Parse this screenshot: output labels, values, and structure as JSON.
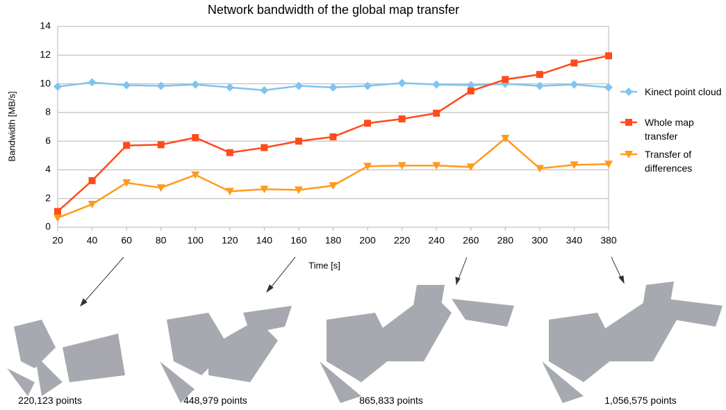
{
  "chart_data": {
    "type": "line",
    "title": "Network bandwidth of the global map transfer",
    "xlabel": "Time [s]",
    "ylabel": "Bandwidth [MB/s]",
    "categories": [
      "20",
      "40",
      "60",
      "80",
      "100",
      "120",
      "140",
      "160",
      "180",
      "200",
      "220",
      "240",
      "260",
      "280",
      "300",
      "340",
      "380"
    ],
    "series": [
      {
        "name": "Kinect point cloud",
        "color": "#7fc4f0",
        "marker": "diamond",
        "values": [
          9.8,
          10.1,
          9.9,
          9.85,
          9.95,
          9.75,
          9.55,
          9.85,
          9.75,
          9.85,
          10.05,
          9.95,
          9.9,
          10.0,
          9.85,
          9.95,
          9.75
        ]
      },
      {
        "name": "Whole map transfer",
        "color": "#ff4a1a",
        "marker": "square",
        "values": [
          1.1,
          3.25,
          5.7,
          5.75,
          6.25,
          5.2,
          5.55,
          6.0,
          6.3,
          7.25,
          7.55,
          7.95,
          9.5,
          10.3,
          10.65,
          11.45,
          11.95
        ]
      },
      {
        "name": "Transfer of differences",
        "color": "#ff9a1a",
        "marker": "triangle-down",
        "values": [
          0.65,
          1.6,
          3.1,
          2.75,
          3.65,
          2.5,
          2.65,
          2.6,
          2.9,
          4.25,
          4.3,
          4.3,
          4.2,
          6.2,
          4.1,
          4.35,
          4.4
        ]
      }
    ],
    "ylim": [
      0,
      14
    ],
    "yticks": [
      0,
      2,
      4,
      6,
      8,
      10,
      12,
      14
    ],
    "grid": true,
    "legend": "right"
  },
  "snapshot_labels": [
    "220,123 points",
    "448,979 points",
    "865,833 points",
    "1,056,575 points"
  ]
}
